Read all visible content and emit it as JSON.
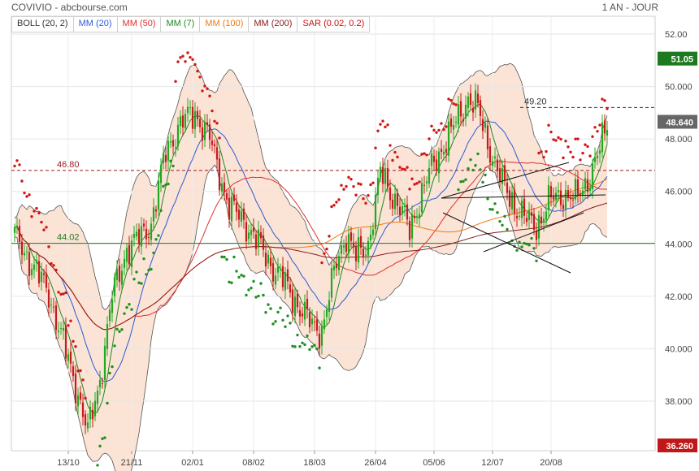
{
  "header": {
    "title": "COVIVIO - abcbourse.com",
    "period": "1 AN - JOUR"
  },
  "legend": [
    {
      "label": "BOLL (20, 2)",
      "color": "#333333"
    },
    {
      "label": "MM (20)",
      "color": "#2a5bd7"
    },
    {
      "label": "MM (50)",
      "color": "#e03030"
    },
    {
      "label": "MM (7)",
      "color": "#1e8a1e"
    },
    {
      "label": "MM (100)",
      "color": "#f07a10"
    },
    {
      "label": "MM (200)",
      "color": "#8b1a1a"
    },
    {
      "label": "SAR (0.02, 0.2)",
      "color": "#cc1010"
    }
  ],
  "chart_data": {
    "type": "candlestick",
    "x_tick_labels": [
      "13/10",
      "21/11",
      "02/01",
      "08/02",
      "18/03",
      "26/04",
      "05/06",
      "12/07",
      "20/08"
    ],
    "y_tick_labels": [
      "52.00",
      "50.000",
      "48.000",
      "46.000",
      "44.000",
      "42.000",
      "40.000",
      "38.000"
    ],
    "ylim": [
      36.26,
      52.3
    ],
    "price_badges": [
      {
        "value": "51.05",
        "color": "#1e7a1e"
      },
      {
        "value": "48.640",
        "color": "#666666"
      },
      {
        "value": "36.260",
        "color": "#c01818"
      }
    ],
    "levels": [
      {
        "label": "46.80",
        "value": 46.8,
        "color": "#9a1c1c",
        "style": "dashed"
      },
      {
        "label": "44.02",
        "value": 44.02,
        "color": "#1e7a1e",
        "style": "solid"
      },
      {
        "label": "49.20",
        "value": 49.2,
        "color": "#333333",
        "style": "dashed"
      }
    ],
    "close_anchors": [
      [
        0,
        44.3
      ],
      [
        8,
        43.1
      ],
      [
        14,
        42.1
      ],
      [
        20,
        40.2
      ],
      [
        26,
        38.3
      ],
      [
        30,
        36.8
      ],
      [
        35,
        38.8
      ],
      [
        40,
        42.0
      ],
      [
        46,
        43.8
      ],
      [
        52,
        44.3
      ],
      [
        56,
        44.8
      ],
      [
        62,
        47.5
      ],
      [
        68,
        48.6
      ],
      [
        74,
        49.0
      ],
      [
        80,
        48.0
      ],
      [
        84,
        46.7
      ],
      [
        88,
        45.4
      ],
      [
        94,
        44.9
      ],
      [
        98,
        44.3
      ],
      [
        102,
        43.7
      ],
      [
        106,
        43.1
      ],
      [
        110,
        42.6
      ],
      [
        114,
        42.0
      ],
      [
        118,
        41.4
      ],
      [
        122,
        40.9
      ],
      [
        126,
        40.7
      ],
      [
        132,
        43.3
      ],
      [
        136,
        44.4
      ],
      [
        140,
        43.5
      ],
      [
        145,
        44.0
      ],
      [
        150,
        46.7
      ],
      [
        154,
        46.0
      ],
      [
        158,
        45.4
      ],
      [
        162,
        44.5
      ],
      [
        166,
        45.7
      ],
      [
        170,
        46.7
      ],
      [
        176,
        47.8
      ],
      [
        182,
        48.8
      ],
      [
        186,
        49.6
      ],
      [
        190,
        49.1
      ],
      [
        195,
        47.6
      ],
      [
        200,
        46.3
      ],
      [
        205,
        45.5
      ],
      [
        210,
        44.9
      ],
      [
        214,
        44.7
      ],
      [
        220,
        45.7
      ],
      [
        225,
        45.9
      ],
      [
        230,
        45.7
      ],
      [
        236,
        46.6
      ],
      [
        240,
        47.6
      ],
      [
        243,
        48.6
      ]
    ],
    "candle_count": 244,
    "sar_switches": [
      0,
      30,
      66,
      85,
      126,
      182,
      215
    ]
  }
}
